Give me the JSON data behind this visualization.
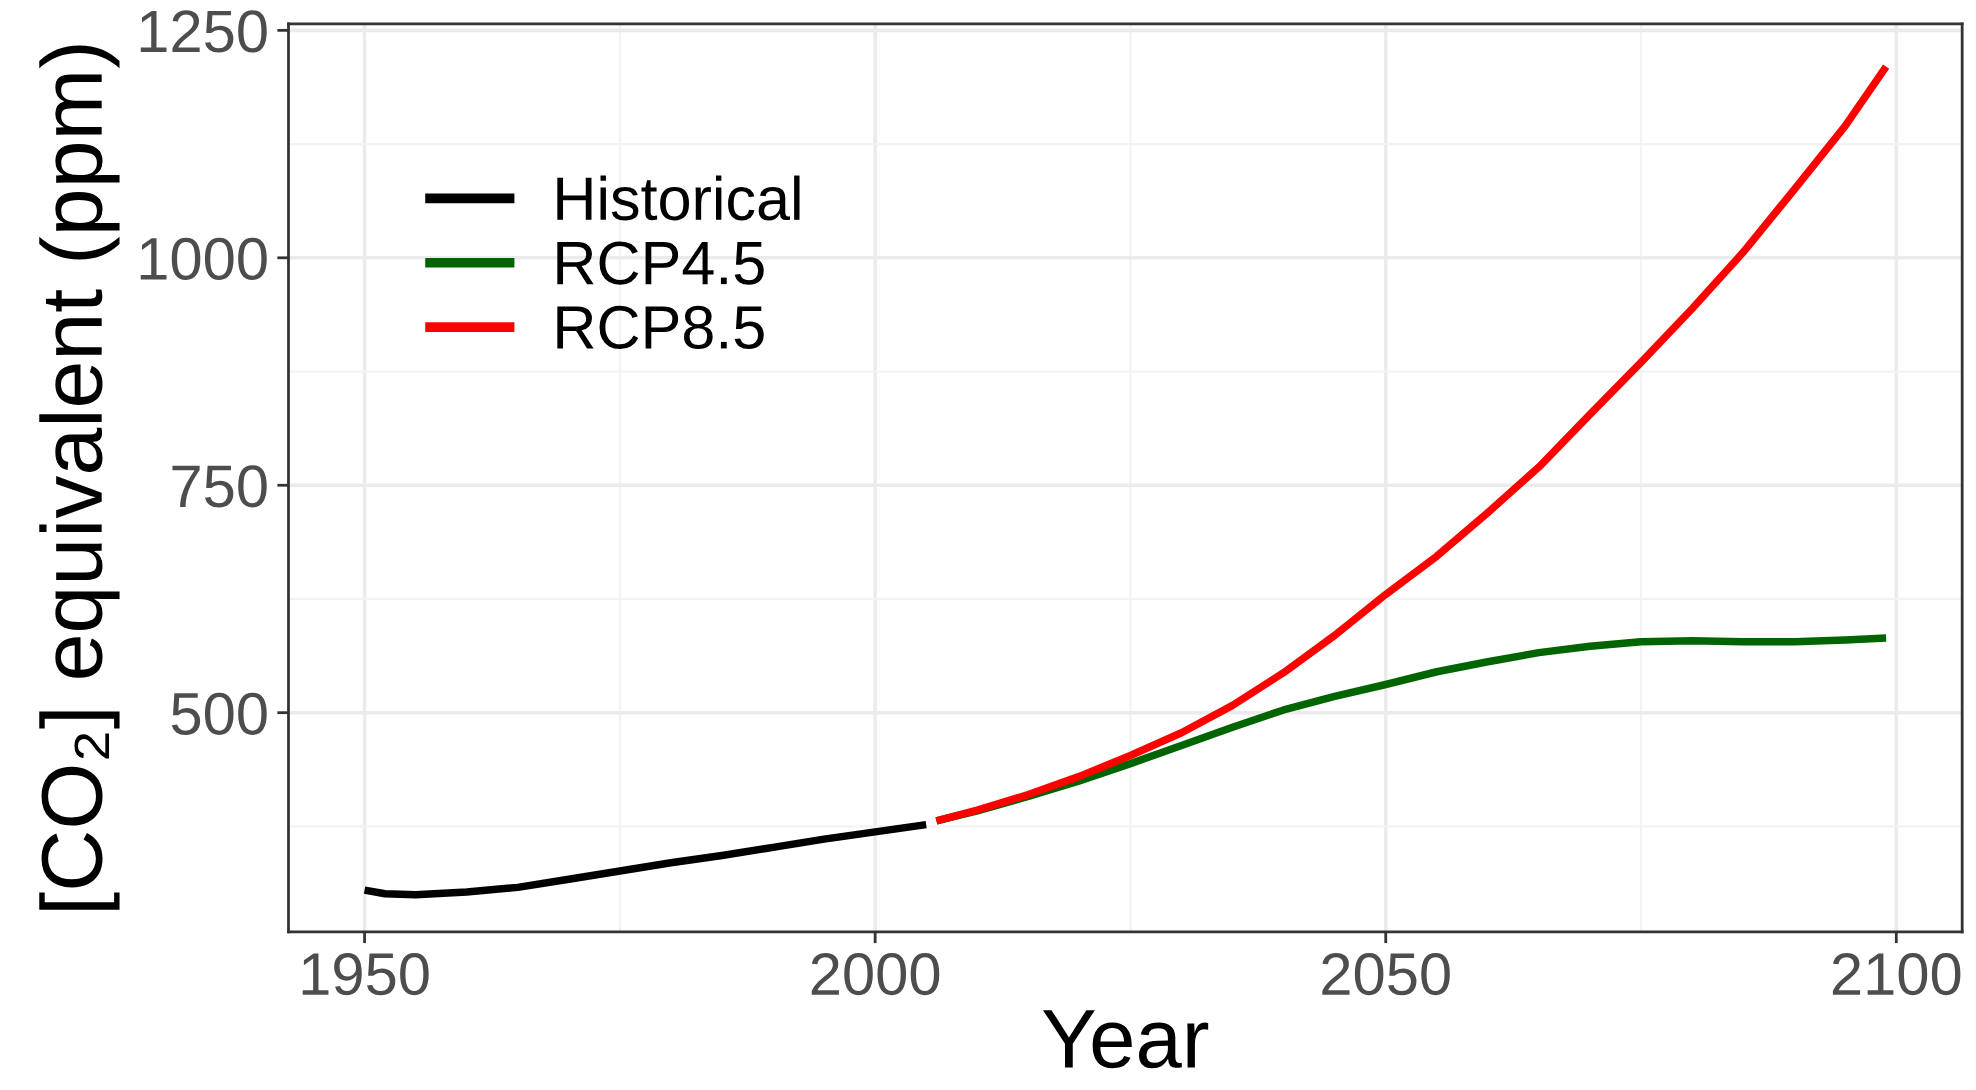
{
  "chart_data": {
    "type": "line",
    "xlabel": "Year",
    "ylabel": "[CO₂] equivalent (ppm)",
    "xlim": [
      1942.55,
      2106.45
    ],
    "ylim": [
      259,
      1257
    ],
    "xticks": [
      1950,
      2000,
      2050,
      2100
    ],
    "yticks": [
      500,
      750,
      1000,
      1250
    ],
    "grid": true,
    "legend": "top left",
    "line_style": "solid",
    "series": [
      {
        "name": "Historical",
        "color": "#000000",
        "x": [
          1950,
          1952,
          1955,
          1960,
          1965,
          1970,
          1975,
          1980,
          1985,
          1990,
          1995,
          2000,
          2005
        ],
        "values": [
          305,
          301,
          300,
          303,
          308,
          317,
          326,
          335,
          343,
          352,
          361,
          369,
          377
        ]
      },
      {
        "name": "RCP4.5",
        "color": "#006400",
        "x": [
          2006,
          2010,
          2015,
          2020,
          2025,
          2030,
          2035,
          2040,
          2045,
          2050,
          2055,
          2060,
          2065,
          2070,
          2075,
          2080,
          2085,
          2090,
          2095,
          2099
        ],
        "values": [
          381,
          392,
          408,
          425,
          444,
          464,
          484,
          503,
          518,
          531,
          545,
          556,
          566,
          573,
          578,
          579,
          578,
          578,
          580,
          582
        ]
      },
      {
        "name": "RCP8.5",
        "color": "#ff0000",
        "x": [
          2006,
          2010,
          2015,
          2020,
          2025,
          2030,
          2035,
          2040,
          2045,
          2050,
          2055,
          2060,
          2065,
          2070,
          2075,
          2080,
          2085,
          2090,
          2095,
          2099
        ],
        "values": [
          381,
          393,
          410,
          430,
          453,
          478,
          508,
          544,
          585,
          630,
          672,
          720,
          770,
          828,
          885,
          944,
          1006,
          1075,
          1145,
          1210
        ]
      }
    ]
  }
}
